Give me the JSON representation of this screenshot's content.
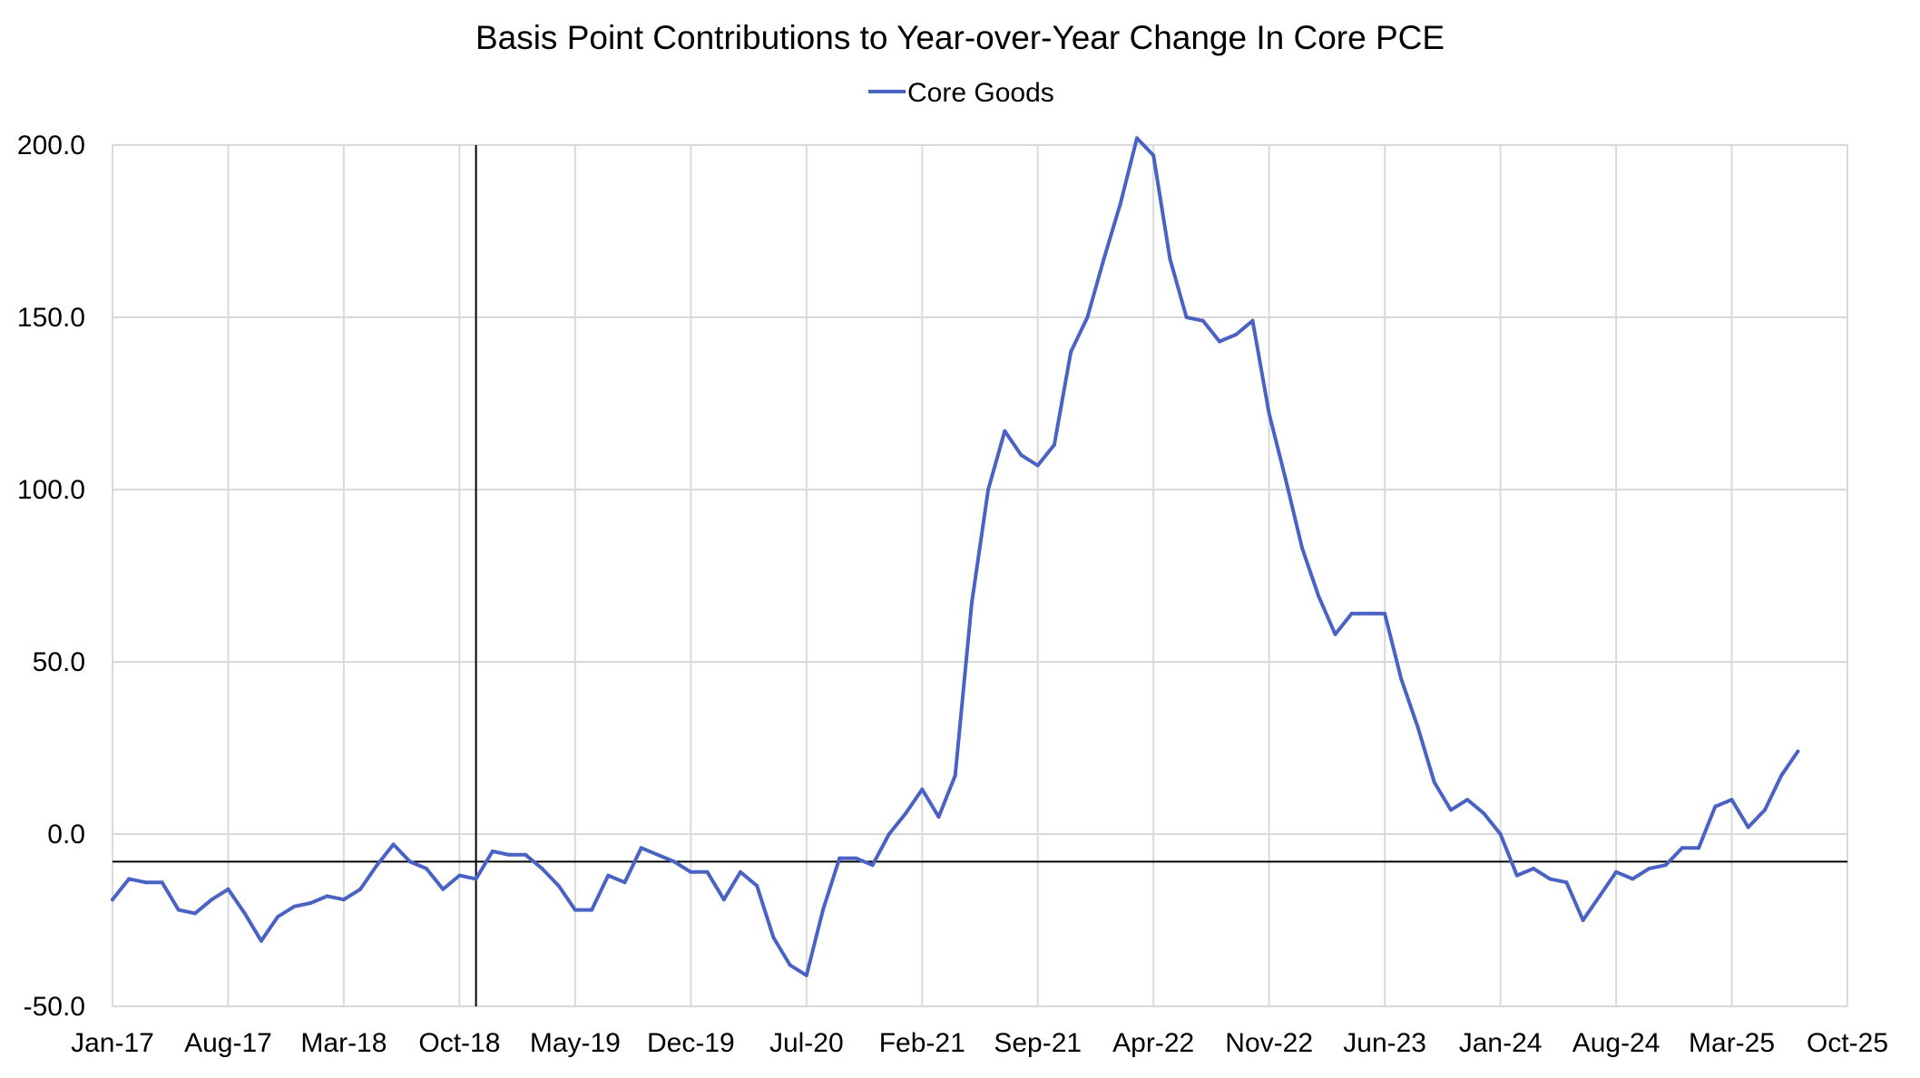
{
  "chart_data": {
    "type": "line",
    "title": "Basis Point Contributions to Year-over-Year Change In Core PCE",
    "xlabel": "",
    "ylabel": "",
    "ylim": [
      -50,
      200
    ],
    "yticks": [
      "200.0",
      "150.0",
      "100.0",
      "50.0",
      "0.0",
      "-50.0"
    ],
    "ytick_values": [
      200,
      150,
      100,
      50,
      0,
      -50
    ],
    "x_tick_labels": [
      "Jan-17",
      "Aug-17",
      "Mar-18",
      "Oct-18",
      "May-19",
      "Dec-19",
      "Jul-20",
      "Feb-21",
      "Sep-21",
      "Apr-22",
      "Nov-22",
      "Jun-23",
      "Jan-24",
      "Aug-24",
      "Mar-25",
      "Oct-25"
    ],
    "x_start": "2017-01",
    "x_end": "2025-10",
    "x_tick_interval_months": 7,
    "grid": true,
    "legend_position": "top-center",
    "reference_line_x": "2018-11",
    "reference_line_y": -8,
    "series": [
      {
        "name": "Core Goods",
        "color": "#4a62c4",
        "x_start": "2017-01",
        "values": [
          -19,
          -13,
          -14,
          -14,
          -22,
          -23,
          -19,
          -16,
          -23,
          -31,
          -24,
          -21,
          -20,
          -18,
          -19,
          -16,
          -9,
          -3,
          -8,
          -10,
          -16,
          -12,
          -13,
          -5,
          -6,
          -6,
          -10,
          -15,
          -22,
          -22,
          -12,
          -14,
          -4,
          -6,
          -8,
          -11,
          -11,
          -19,
          -11,
          -15,
          -30,
          -38,
          -41,
          -22,
          -7,
          -7,
          -9,
          0,
          6,
          13,
          5,
          17,
          67,
          100,
          117,
          110,
          107,
          113,
          140,
          150,
          167,
          183,
          202,
          197,
          167,
          150,
          149,
          143,
          145,
          149,
          122,
          103,
          83,
          69,
          58,
          64,
          64,
          64,
          45,
          31,
          15,
          7,
          10,
          6,
          0,
          -12,
          -10,
          -13,
          -14,
          -25,
          -18,
          -11,
          -13,
          -10,
          -9,
          -4,
          -4,
          8,
          10,
          2,
          7,
          17,
          24
        ]
      }
    ]
  }
}
